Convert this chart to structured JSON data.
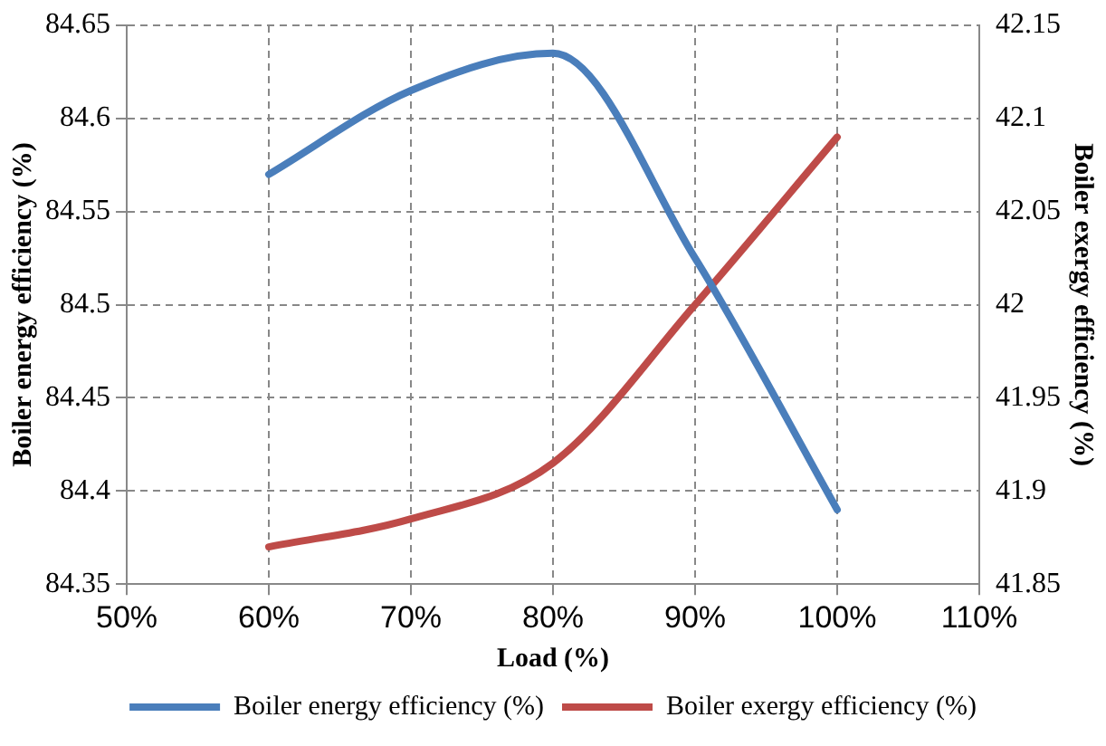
{
  "chart_data": {
    "type": "line",
    "xlabel": "Load (%)",
    "ylabel": "Boiler energy efficiency (%)",
    "y2label": "Boiler exergy efficiency (%)",
    "x": [
      60,
      70,
      80,
      90,
      100
    ],
    "xlim": [
      50,
      110
    ],
    "xticks": [
      {
        "value": 50,
        "label": "50%"
      },
      {
        "value": 60,
        "label": "60%"
      },
      {
        "value": 70,
        "label": "70%"
      },
      {
        "value": 80,
        "label": "80%"
      },
      {
        "value": 90,
        "label": "90%"
      },
      {
        "value": 100,
        "label": "100%"
      },
      {
        "value": 110,
        "label": "110%"
      }
    ],
    "ylim": [
      84.35,
      84.65
    ],
    "yticks": [
      84.35,
      84.4,
      84.45,
      84.5,
      84.55,
      84.6,
      84.65
    ],
    "y2lim": [
      41.85,
      42.15
    ],
    "y2ticks": [
      41.85,
      41.9,
      41.95,
      42,
      42.05,
      42.1,
      42.15
    ],
    "series": [
      {
        "name": "Boiler energy efficiency (%)",
        "color": "#4a7ebb",
        "values": [
          84.57,
          84.615,
          84.635,
          84.525,
          84.39
        ]
      },
      {
        "name": "Boiler exergy efficiency (%)",
        "color": "#be4b48",
        "values": [
          41.87,
          41.885,
          41.915,
          42.0,
          42.09
        ],
        "axis": "y2"
      }
    ],
    "grid": true,
    "legend": "bottom",
    "marker": "none",
    "line_style": "solid"
  }
}
